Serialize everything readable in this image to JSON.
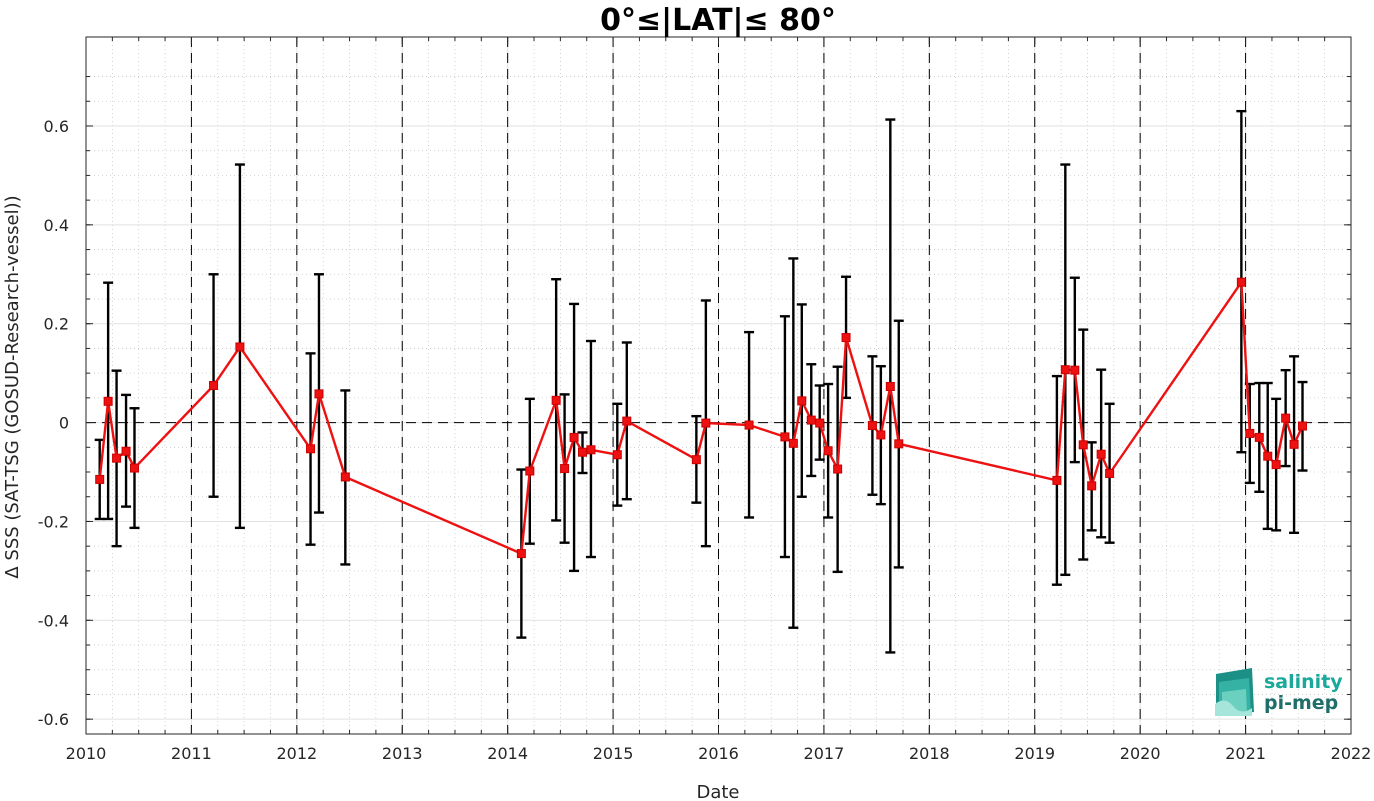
{
  "chart_data": {
    "type": "line",
    "title": "0°≤|LAT|≤ 80°",
    "xlabel": "Date",
    "ylabel": "Δ SSS (SAT-TSG (GOSUD-Research-vessel))",
    "xlim": [
      2010,
      2022
    ],
    "ylim": [
      -0.63,
      0.78
    ],
    "xticks": [
      2010,
      2011,
      2012,
      2013,
      2014,
      2015,
      2016,
      2017,
      2018,
      2019,
      2020,
      2021,
      2022
    ],
    "xtick_labels": [
      "2010",
      "2011",
      "2012",
      "2013",
      "2014",
      "2015",
      "2016",
      "2017",
      "2018",
      "2019",
      "2020",
      "2021",
      "2022"
    ],
    "yticks": [
      -0.6,
      -0.4,
      -0.2,
      0,
      0.2,
      0.4,
      0.6
    ],
    "ytick_labels": [
      "-0.6",
      "-0.4",
      "-0.2",
      "0",
      "0.2",
      "0.4",
      "0.6"
    ],
    "vertical_dashed_lines": [
      2011,
      2012,
      2013,
      2014,
      2015,
      2016,
      2017,
      2018,
      2019,
      2020,
      2021
    ],
    "zero_line": 0,
    "grid": true,
    "series": [
      {
        "color": "#ee1111",
        "marker": "square",
        "errorbar_color": "#000000",
        "points": [
          {
            "x": 2010.13,
            "y": -0.115,
            "lo": -0.195,
            "hi": -0.035
          },
          {
            "x": 2010.21,
            "y": 0.043,
            "lo": -0.195,
            "hi": 0.283
          },
          {
            "x": 2010.29,
            "y": -0.072,
            "lo": -0.25,
            "hi": 0.105
          },
          {
            "x": 2010.38,
            "y": -0.058,
            "lo": -0.17,
            "hi": 0.056
          },
          {
            "x": 2010.46,
            "y": -0.092,
            "lo": -0.213,
            "hi": 0.029
          },
          {
            "x": 2011.21,
            "y": 0.075,
            "lo": -0.15,
            "hi": 0.3
          },
          {
            "x": 2011.46,
            "y": 0.153,
            "lo": -0.213,
            "hi": 0.522
          },
          {
            "x": 2012.13,
            "y": -0.053,
            "lo": -0.247,
            "hi": 0.14
          },
          {
            "x": 2012.21,
            "y": 0.058,
            "lo": -0.182,
            "hi": 0.3
          },
          {
            "x": 2012.46,
            "y": -0.11,
            "lo": -0.287,
            "hi": 0.065
          },
          {
            "x": 2014.13,
            "y": -0.265,
            "lo": -0.435,
            "hi": -0.095
          },
          {
            "x": 2014.21,
            "y": -0.098,
            "lo": -0.245,
            "hi": 0.048
          },
          {
            "x": 2014.46,
            "y": 0.045,
            "lo": -0.198,
            "hi": 0.29
          },
          {
            "x": 2014.54,
            "y": -0.093,
            "lo": -0.243,
            "hi": 0.057
          },
          {
            "x": 2014.63,
            "y": -0.03,
            "lo": -0.3,
            "hi": 0.24
          },
          {
            "x": 2014.71,
            "y": -0.06,
            "lo": -0.102,
            "hi": -0.02
          },
          {
            "x": 2014.79,
            "y": -0.055,
            "lo": -0.272,
            "hi": 0.165
          },
          {
            "x": 2015.04,
            "y": -0.065,
            "lo": -0.168,
            "hi": 0.038
          },
          {
            "x": 2015.13,
            "y": 0.003,
            "lo": -0.155,
            "hi": 0.162
          },
          {
            "x": 2015.79,
            "y": -0.075,
            "lo": -0.162,
            "hi": 0.013
          },
          {
            "x": 2015.88,
            "y": -0.001,
            "lo": -0.25,
            "hi": 0.247
          },
          {
            "x": 2016.29,
            "y": -0.005,
            "lo": -0.192,
            "hi": 0.183
          },
          {
            "x": 2016.63,
            "y": -0.029,
            "lo": -0.272,
            "hi": 0.215
          },
          {
            "x": 2016.71,
            "y": -0.042,
            "lo": -0.415,
            "hi": 0.332
          },
          {
            "x": 2016.79,
            "y": 0.044,
            "lo": -0.15,
            "hi": 0.239
          },
          {
            "x": 2016.88,
            "y": 0.005,
            "lo": -0.108,
            "hi": 0.118
          },
          {
            "x": 2016.96,
            "y": -0.001,
            "lo": -0.075,
            "hi": 0.075
          },
          {
            "x": 2017.04,
            "y": -0.057,
            "lo": -0.192,
            "hi": 0.078
          },
          {
            "x": 2017.13,
            "y": -0.094,
            "lo": -0.302,
            "hi": 0.113
          },
          {
            "x": 2017.21,
            "y": 0.172,
            "lo": 0.05,
            "hi": 0.295
          },
          {
            "x": 2017.46,
            "y": -0.006,
            "lo": -0.146,
            "hi": 0.134
          },
          {
            "x": 2017.54,
            "y": -0.025,
            "lo": -0.165,
            "hi": 0.114
          },
          {
            "x": 2017.63,
            "y": 0.073,
            "lo": -0.465,
            "hi": 0.613
          },
          {
            "x": 2017.71,
            "y": -0.043,
            "lo": -0.293,
            "hi": 0.206
          },
          {
            "x": 2019.21,
            "y": -0.117,
            "lo": -0.328,
            "hi": 0.094
          },
          {
            "x": 2019.29,
            "y": 0.107,
            "lo": -0.308,
            "hi": 0.522
          },
          {
            "x": 2019.38,
            "y": 0.106,
            "lo": -0.08,
            "hi": 0.293
          },
          {
            "x": 2019.46,
            "y": -0.045,
            "lo": -0.277,
            "hi": 0.188
          },
          {
            "x": 2019.54,
            "y": -0.128,
            "lo": -0.218,
            "hi": -0.04
          },
          {
            "x": 2019.63,
            "y": -0.064,
            "lo": -0.232,
            "hi": 0.107
          },
          {
            "x": 2019.71,
            "y": -0.103,
            "lo": -0.243,
            "hi": 0.038
          },
          {
            "x": 2020.96,
            "y": 0.284,
            "lo": -0.06,
            "hi": 0.63
          },
          {
            "x": 2021.04,
            "y": -0.022,
            "lo": -0.122,
            "hi": 0.078
          },
          {
            "x": 2021.13,
            "y": -0.03,
            "lo": -0.14,
            "hi": 0.08
          },
          {
            "x": 2021.21,
            "y": -0.068,
            "lo": -0.215,
            "hi": 0.08
          },
          {
            "x": 2021.29,
            "y": -0.085,
            "lo": -0.218,
            "hi": 0.048
          },
          {
            "x": 2021.38,
            "y": 0.009,
            "lo": -0.088,
            "hi": 0.106
          },
          {
            "x": 2021.46,
            "y": -0.044,
            "lo": -0.223,
            "hi": 0.134
          },
          {
            "x": 2021.54,
            "y": -0.007,
            "lo": -0.097,
            "hi": 0.082
          }
        ]
      }
    ]
  },
  "logo": {
    "line1": "salinity",
    "line2": "pi-mep",
    "color_top": "#18a99a",
    "color_bottom": "#1f6e6a"
  }
}
